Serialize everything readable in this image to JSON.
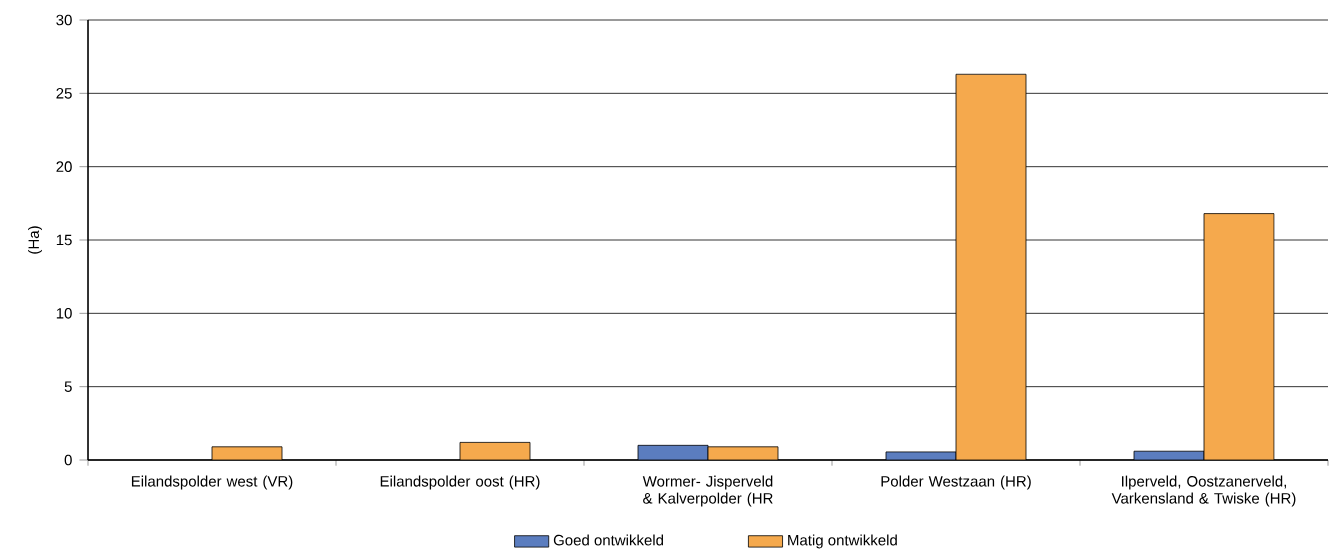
{
  "chart_data": {
    "type": "bar",
    "ylabel": "(Ha)",
    "categories": [
      "Eilandspolder west (VR)",
      "Eilandspolder oost (HR)",
      "Wormer- Jisperveld & Kalverpolder (HR",
      "Polder Westzaan (HR)",
      "Ilperveld, Oostzanerveld, Varkensland & Twiske (HR)"
    ],
    "series": [
      {
        "name": "Goed ontwikkeld",
        "color": "#5b7dbf",
        "values": [
          null,
          null,
          1.0,
          0.55,
          0.6
        ]
      },
      {
        "name": "Matig ontwikkeld",
        "color": "#f5a94d",
        "values": [
          0.9,
          1.2,
          0.9,
          26.3,
          16.8
        ]
      }
    ],
    "ylim": [
      0,
      30
    ],
    "yticks": [
      0,
      5,
      10,
      15,
      20,
      25,
      30
    ],
    "grid": "y",
    "legend": "bottom"
  }
}
